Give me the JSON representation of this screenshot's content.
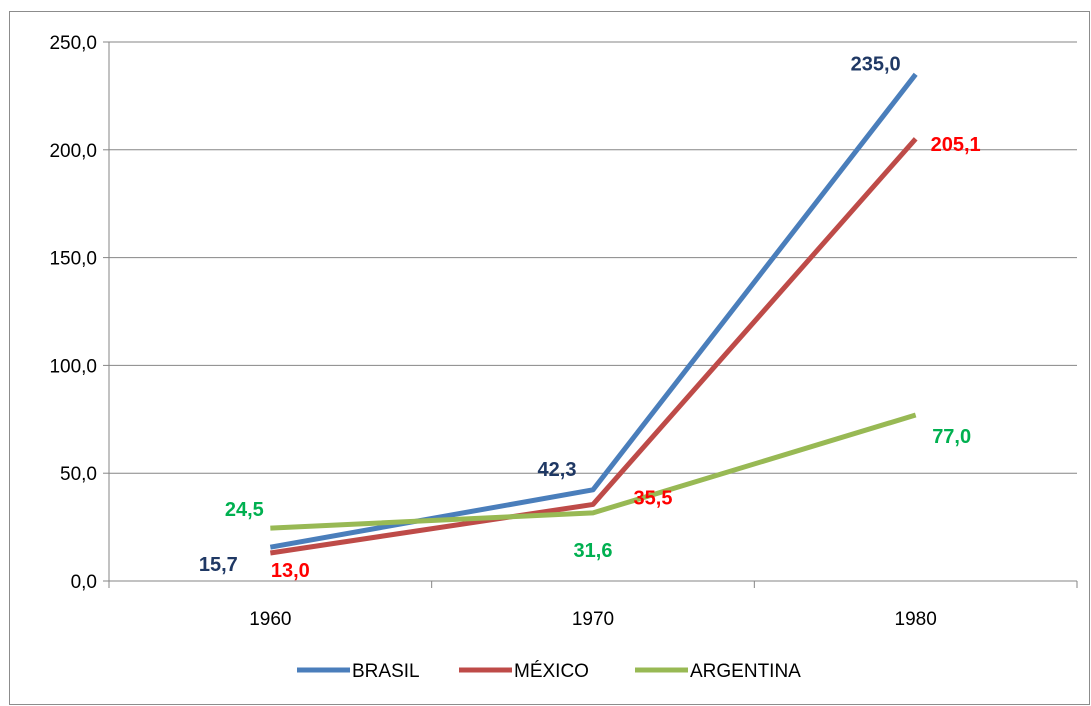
{
  "chart_data": {
    "type": "line",
    "title": "",
    "xlabel": "",
    "ylabel": "",
    "categories": [
      "1960",
      "1970",
      "1980"
    ],
    "ylim": [
      0,
      250
    ],
    "y_ticks": [
      "0,0",
      "50,0",
      "100,0",
      "150,0",
      "200,0",
      "250,0"
    ],
    "grid": true,
    "legend_position": "bottom",
    "series": [
      {
        "name": "BRASIL",
        "values": [
          15.7,
          42.3,
          235.0
        ],
        "labels": [
          "15,7",
          "42,3",
          "235,0"
        ],
        "color": "#4a7ebb",
        "label_color": "#1f3864"
      },
      {
        "name": "MÉXICO",
        "values": [
          13.0,
          35.5,
          205.1
        ],
        "labels": [
          "13,0",
          "35,5",
          "205,1"
        ],
        "color": "#be4b48",
        "label_color": "#ff0000"
      },
      {
        "name": "ARGENTINA",
        "values": [
          24.5,
          31.6,
          77.0
        ],
        "labels": [
          "24,5",
          "31,6",
          "77,0"
        ],
        "color": "#98b954",
        "label_color": "#00b050"
      }
    ]
  }
}
